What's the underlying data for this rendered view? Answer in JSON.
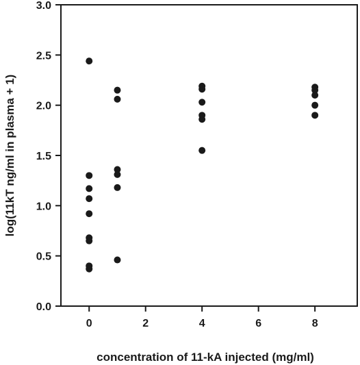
{
  "chart_data": {
    "type": "scatter",
    "xlabel": "concentration of 11-kA injected (mg/ml)",
    "ylabel": "log(11kT  ng/ml  in plasma + 1)",
    "xlim": [
      -1,
      9.5
    ],
    "ylim": [
      0,
      3.0
    ],
    "xticks": [
      0,
      2,
      4,
      6,
      8
    ],
    "yticks": [
      0.0,
      0.5,
      1.0,
      1.5,
      2.0,
      2.5,
      3.0
    ],
    "xtick_labels": [
      "0",
      "2",
      "4",
      "6",
      "8"
    ],
    "ytick_labels": [
      "0.0",
      "0.5",
      "1.0",
      "1.5",
      "2.0",
      "2.5",
      "3.0"
    ],
    "grid": false,
    "marker_color": "#1a1a1a",
    "points": [
      {
        "x": 0,
        "y": 2.44
      },
      {
        "x": 0,
        "y": 1.3
      },
      {
        "x": 0,
        "y": 1.17
      },
      {
        "x": 0,
        "y": 1.07
      },
      {
        "x": 0,
        "y": 0.92
      },
      {
        "x": 0,
        "y": 0.68
      },
      {
        "x": 0,
        "y": 0.65
      },
      {
        "x": 0,
        "y": 0.4
      },
      {
        "x": 0,
        "y": 0.37
      },
      {
        "x": 1,
        "y": 2.15
      },
      {
        "x": 1,
        "y": 2.06
      },
      {
        "x": 1,
        "y": 1.36
      },
      {
        "x": 1,
        "y": 1.31
      },
      {
        "x": 1,
        "y": 1.18
      },
      {
        "x": 1,
        "y": 0.46
      },
      {
        "x": 4,
        "y": 2.19
      },
      {
        "x": 4,
        "y": 2.16
      },
      {
        "x": 4,
        "y": 2.03
      },
      {
        "x": 4,
        "y": 1.9
      },
      {
        "x": 4,
        "y": 1.86
      },
      {
        "x": 4,
        "y": 1.55
      },
      {
        "x": 8,
        "y": 2.18
      },
      {
        "x": 8,
        "y": 2.15
      },
      {
        "x": 8,
        "y": 2.1
      },
      {
        "x": 8,
        "y": 2.0
      },
      {
        "x": 8,
        "y": 1.9
      }
    ]
  }
}
